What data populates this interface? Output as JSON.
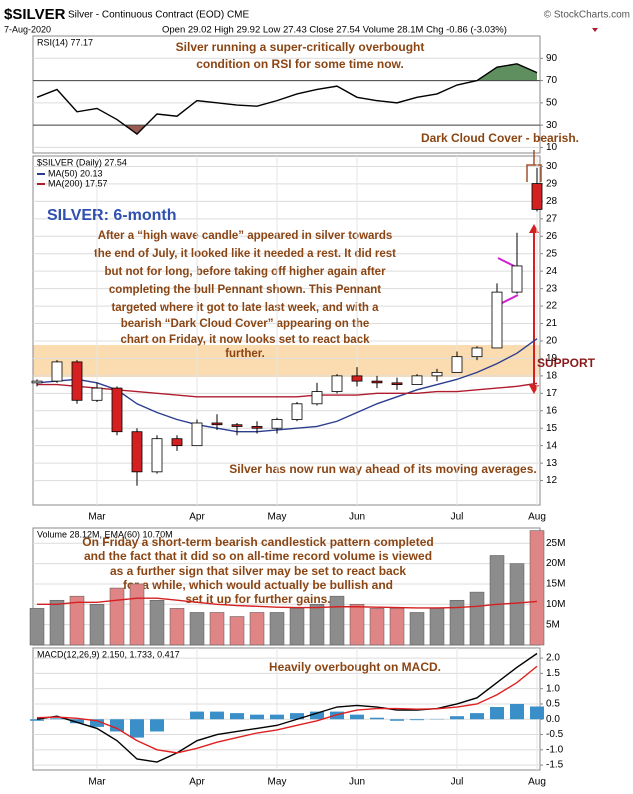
{
  "header": {
    "symbol": "$SILVER",
    "name": "Silver - Continuous Contract (EOD) CME",
    "date": "7-Aug-2020",
    "quote": "Open 29.02 High 29.92 Low 27.43 Close 27.54 Volume 28.1M Chg -0.86 (-3.03%)",
    "copyright": "© StockCharts.com"
  },
  "annotations": {
    "rsi": [
      "Silver running a super-critically overbought",
      "condition on RSI for some time now."
    ],
    "dark_cloud": "Dark Cloud Cover - bearish.",
    "title": "SILVER: 6-month",
    "comment": [
      "After a “high wave candle” appeared in silver towards",
      "the end of July, it looked like it needed a rest. It did rest",
      "but not for long, before taking off higher again after",
      "completing the bull Pennant shown. This Pennant",
      "targeted where it got to late last week, and with a",
      "bearish “Dark Cloud Cover” appearing on the",
      "chart on Friday, it now looks set to react back",
      "further."
    ],
    "support": "SUPPORT",
    "ma_note": "Silver has now run way ahead of its moving averages.",
    "volume": [
      "On Friday a short-term bearish candlestick pattern completed",
      "and the fact that it did so on all-time record volume is viewed",
      "as a further sign that silver may be set to react back",
      "for a while, which would actually be bullish and",
      "set it up for further gains."
    ],
    "macd": "Heavily overbought on MACD."
  },
  "chart_data": [
    {
      "type": "line",
      "legend": "RSI(14) 77.17",
      "ylim": [
        5,
        110
      ],
      "yticks": [
        10,
        30,
        50,
        70,
        90
      ],
      "grid": true,
      "fill_above": 70,
      "fill_below": 30,
      "above_color": "#5f8f5f",
      "below_color": "#9a5a52",
      "series": [
        {
          "color": "#000000",
          "values": [
            55,
            62,
            42,
            45,
            35,
            22,
            40,
            38,
            52,
            50,
            48,
            47,
            52,
            58,
            62,
            65,
            55,
            52,
            50,
            55,
            58,
            66,
            70,
            82,
            85,
            77.17
          ]
        }
      ]
    },
    {
      "type": "candlestick",
      "legend": "$SILVER (Daily) 27.54",
      "ylim": [
        10.6,
        30.6
      ],
      "yticks": [
        12,
        13,
        14,
        15,
        16,
        17,
        18,
        19,
        20,
        21,
        22,
        23,
        24,
        25,
        26,
        27,
        28,
        29,
        30
      ],
      "grid": true,
      "categories": [
        null,
        null,
        null,
        "Mar",
        null,
        null,
        null,
        null,
        "Apr",
        null,
        null,
        null,
        "May",
        null,
        null,
        null,
        "Jun",
        null,
        null,
        null,
        null,
        "Jul",
        null,
        null,
        null,
        "Aug"
      ],
      "open": [
        17.6,
        17.7,
        18.8,
        16.6,
        17.3,
        14.8,
        12.5,
        14.4,
        14.0,
        15.3,
        15.2,
        15.1,
        15.0,
        15.5,
        16.4,
        17.1,
        18.0,
        17.7,
        17.6,
        17.5,
        18.0,
        18.2,
        19.1,
        19.6,
        22.8,
        29.02
      ],
      "high": [
        17.8,
        18.9,
        18.9,
        17.6,
        17.4,
        15.0,
        14.6,
        14.6,
        15.5,
        15.8,
        15.3,
        15.4,
        15.6,
        16.5,
        17.6,
        18.1,
        18.5,
        18.0,
        17.9,
        18.1,
        18.4,
        19.4,
        19.7,
        23.3,
        26.2,
        29.92
      ],
      "low": [
        17.4,
        17.6,
        16.4,
        16.5,
        14.6,
        11.7,
        12.4,
        13.7,
        14.0,
        14.9,
        14.6,
        14.7,
        14.7,
        15.4,
        16.3,
        17.0,
        17.4,
        17.3,
        17.2,
        17.5,
        17.7,
        18.2,
        18.9,
        19.6,
        22.7,
        27.43
      ],
      "close": [
        17.7,
        18.8,
        16.6,
        17.3,
        14.8,
        12.5,
        14.4,
        14.0,
        15.3,
        15.2,
        15.1,
        15.0,
        15.5,
        16.4,
        17.1,
        18.0,
        17.7,
        17.6,
        17.5,
        18.0,
        18.2,
        19.1,
        19.6,
        22.8,
        24.3,
        27.54
      ],
      "up_color": "#ffffff",
      "down_color": "#d42020",
      "series": [
        {
          "name": "MA(50) 20.13",
          "color": "#2b3d8f",
          "values": [
            17.6,
            17.7,
            17.8,
            17.6,
            17.2,
            16.4,
            15.9,
            15.5,
            15.2,
            15.0,
            14.8,
            14.8,
            14.9,
            15.0,
            15.1,
            15.4,
            15.9,
            16.4,
            16.8,
            17.2,
            17.5,
            17.8,
            18.2,
            18.7,
            19.3,
            20.13
          ]
        },
        {
          "name": "MA(200) 17.57",
          "color": "#b01c2e",
          "values": [
            17.5,
            17.5,
            17.4,
            17.3,
            17.2,
            17.1,
            17.0,
            16.9,
            16.8,
            16.8,
            16.8,
            16.8,
            16.8,
            16.8,
            16.9,
            16.9,
            16.9,
            17.0,
            17.0,
            17.0,
            17.1,
            17.1,
            17.2,
            17.3,
            17.4,
            17.57
          ]
        }
      ]
    },
    {
      "type": "bar",
      "legend": "Volume 28.12M, EMA(60) 10.70M",
      "ylim": [
        0,
        28.75
      ],
      "yticks": [
        {
          "value": 5,
          "label": "5M"
        },
        {
          "value": 10,
          "label": "10M"
        },
        {
          "value": 15,
          "label": "15M"
        },
        {
          "value": 20,
          "label": "20M"
        },
        {
          "value": 25,
          "label": "25M"
        }
      ],
      "grid": true,
      "values": [
        9,
        11,
        12,
        10,
        14,
        15,
        11,
        9,
        8,
        8,
        7,
        8,
        8,
        9,
        10,
        12,
        10,
        9,
        9,
        8,
        9,
        11,
        13,
        22,
        20,
        28.12
      ],
      "up_color": "#8c8c8c",
      "down_color": "#e08585",
      "series": [
        {
          "color": "#d42020",
          "values": [
            10,
            10,
            10.5,
            10.5,
            11,
            11.5,
            11.5,
            11,
            10.5,
            10,
            9.7,
            9.5,
            9.3,
            9.2,
            9.2,
            9.4,
            9.4,
            9.3,
            9.2,
            9.1,
            9.1,
            9.2,
            9.5,
            10,
            10.3,
            10.7
          ]
        }
      ]
    },
    {
      "type": "line",
      "legend": "MACD(12,26,9) 2.150, 1.733, 0.417",
      "ylim": [
        -1.66,
        2.33
      ],
      "yticks": [
        {
          "value": -1.5,
          "label": "-1.5"
        },
        {
          "value": -1,
          "label": "-1.0"
        },
        -0.5,
        {
          "value": 0,
          "label": "0.0"
        },
        0.5,
        {
          "value": 1,
          "label": "1.0"
        },
        1.5,
        {
          "value": 2,
          "label": "2.0"
        }
      ],
      "grid": true,
      "categories": [
        null,
        null,
        null,
        "Mar",
        null,
        null,
        null,
        null,
        "Apr",
        null,
        null,
        null,
        "May",
        null,
        null,
        null,
        "Jun",
        null,
        null,
        null,
        null,
        "Jul",
        null,
        null,
        null,
        "Aug"
      ],
      "histogram": {
        "color": "#3a8fc8",
        "values": [
          -0.05,
          0.03,
          -0.13,
          -0.25,
          -0.4,
          -0.6,
          -0.4,
          0,
          0.25,
          0.25,
          0.2,
          0.15,
          0.15,
          0.2,
          0.25,
          0.25,
          0.15,
          0.05,
          -0.05,
          -0.03,
          0.01,
          0.1,
          0.2,
          0.4,
          0.5,
          0.417
        ]
      },
      "series": [
        {
          "color": "#000000",
          "values": [
            0,
            0.1,
            -0.1,
            -0.3,
            -0.7,
            -1.3,
            -1.4,
            -1.1,
            -0.7,
            -0.5,
            -0.4,
            -0.3,
            -0.2,
            0.0,
            0.2,
            0.4,
            0.45,
            0.4,
            0.3,
            0.3,
            0.35,
            0.5,
            0.7,
            1.2,
            1.7,
            2.15
          ]
        },
        {
          "color": "#e02020",
          "values": [
            0.05,
            0.07,
            0.03,
            -0.05,
            -0.3,
            -0.7,
            -1.0,
            -1.1,
            -0.95,
            -0.75,
            -0.6,
            -0.45,
            -0.35,
            -0.2,
            -0.05,
            0.15,
            0.3,
            0.35,
            0.35,
            0.33,
            0.34,
            0.4,
            0.5,
            0.8,
            1.2,
            1.733
          ]
        }
      ]
    }
  ]
}
